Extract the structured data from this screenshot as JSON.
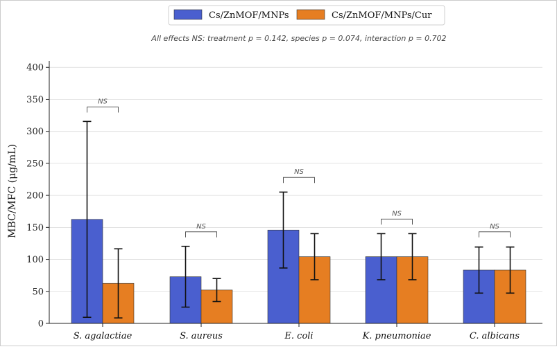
{
  "chart_data": {
    "type": "bar",
    "title": "",
    "subtitle": "All effects NS: treatment p = 0.142, species p = 0.074, interaction p = 0.702",
    "xlabel": "",
    "ylabel": "MBC/MFC (μg/mL)",
    "ylim": [
      0,
      410
    ],
    "yticks": [
      "0",
      "50",
      "100",
      "150",
      "200",
      "250",
      "300",
      "350",
      "400"
    ],
    "grid": "horizontal",
    "legend_position": "top-center",
    "categories": [
      "S. agalactiae",
      "S. aureus",
      "E. coli",
      "K. pneumoniae",
      "C. albicans"
    ],
    "series": [
      {
        "name": "Cs/ZnMOF/MNPs",
        "color": "#4a5fcf",
        "values": [
          162.5,
          72.9,
          145.8,
          104.2,
          83.3
        ],
        "error": [
          153.0,
          47.5,
          59.3,
          36.0,
          36.0
        ]
      },
      {
        "name": "Cs/ZnMOF/MNPs/Cur",
        "color": "#e67e22",
        "values": [
          62.5,
          52.1,
          104.2,
          104.2,
          83.3
        ],
        "error": [
          54.0,
          18.0,
          36.0,
          36.0,
          36.0
        ]
      }
    ],
    "annotations": [
      {
        "label": "NS",
        "category_index": 0,
        "y": 338
      },
      {
        "label": "NS",
        "category_index": 1,
        "y": 143
      },
      {
        "label": "NS",
        "category_index": 2,
        "y": 228
      },
      {
        "label": "NS",
        "category_index": 3,
        "y": 163
      },
      {
        "label": "NS",
        "category_index": 4,
        "y": 143
      }
    ]
  }
}
